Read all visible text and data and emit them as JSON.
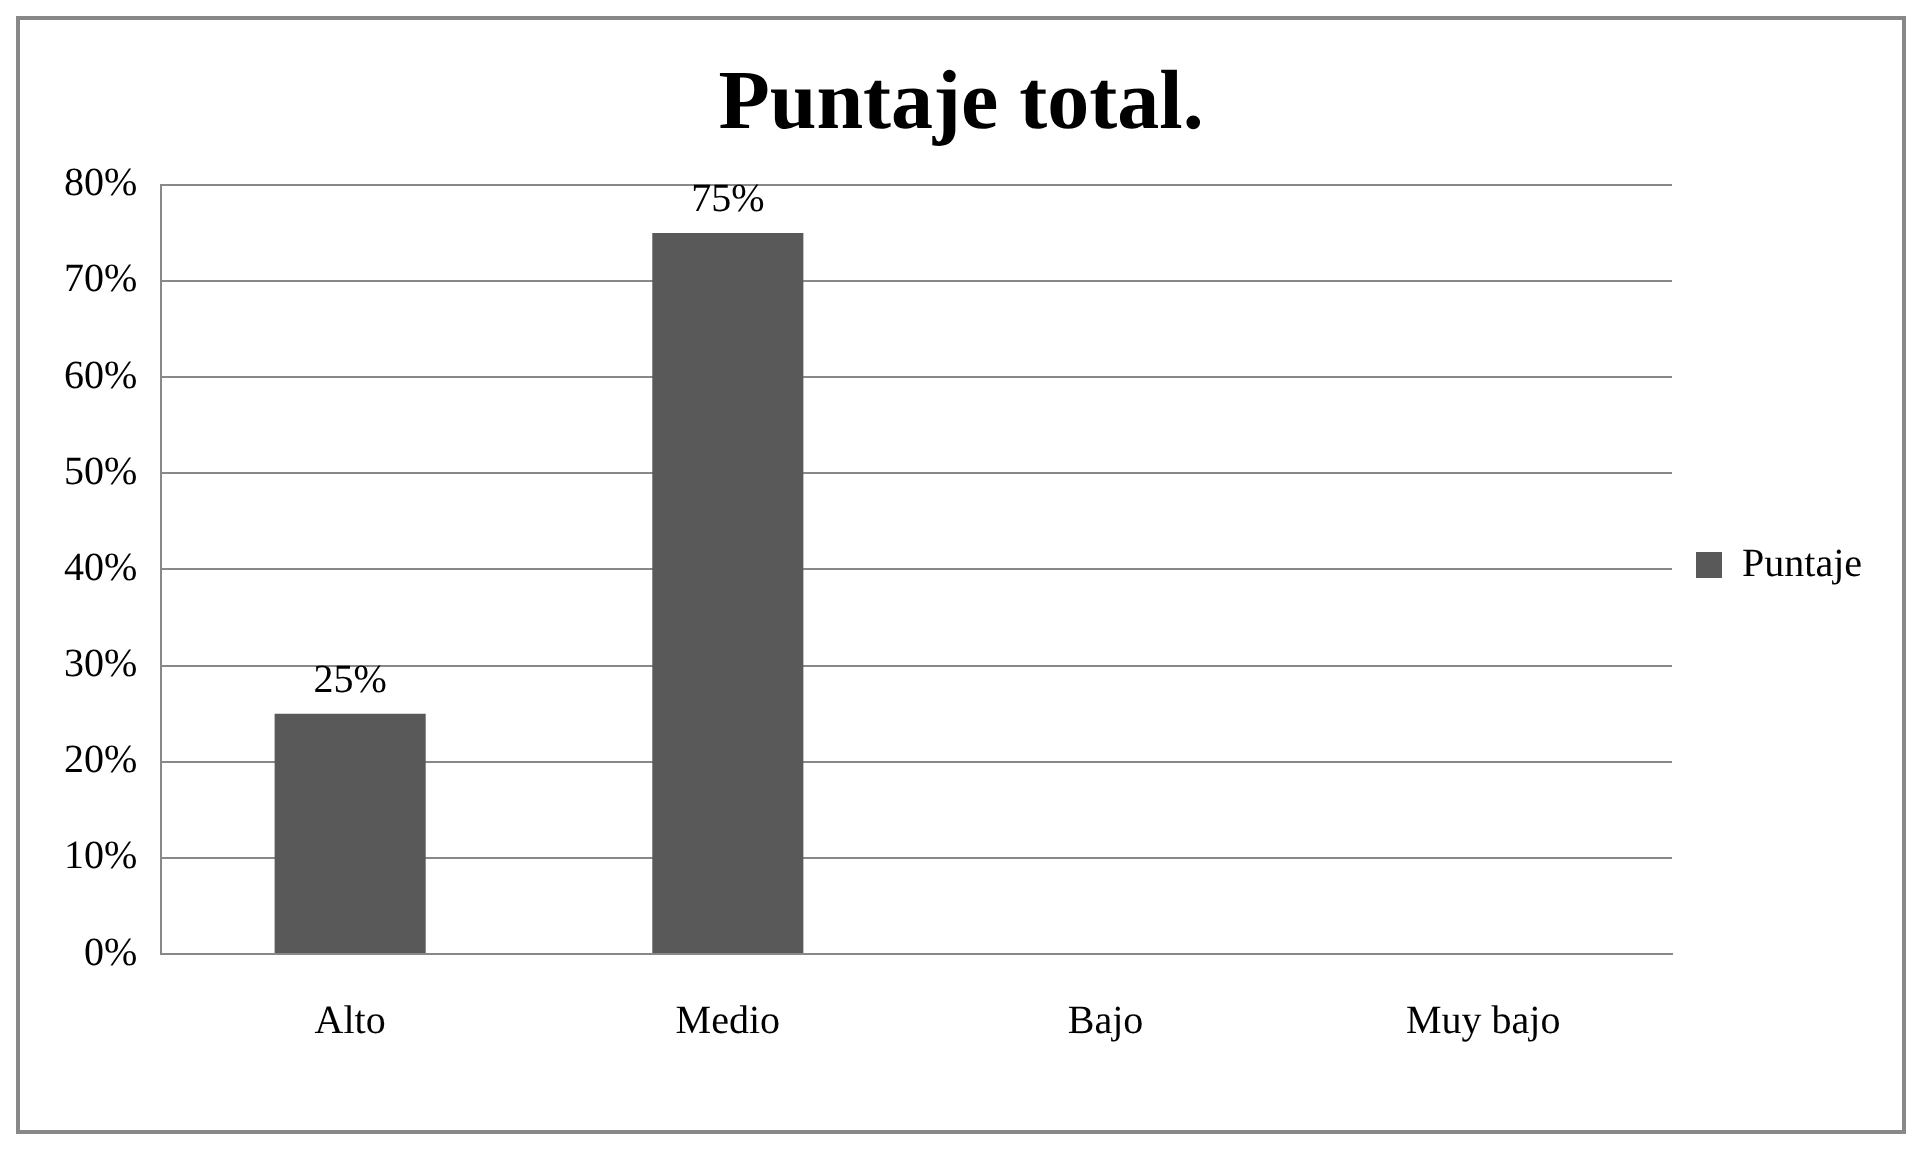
{
  "chart_data": {
    "type": "bar",
    "title": "Puntaje total.",
    "categories": [
      "Alto",
      "Medio",
      "Bajo",
      "Muy bajo"
    ],
    "series": [
      {
        "name": "Puntaje",
        "color": "#595959",
        "values": [
          25,
          75,
          0,
          0
        ],
        "value_labels": [
          "25%",
          "75%",
          null,
          null
        ]
      }
    ],
    "ylim": [
      0,
      80
    ],
    "yticks": [
      {
        "value": 0,
        "label": "0%"
      },
      {
        "value": 10,
        "label": "10%"
      },
      {
        "value": 20,
        "label": "20%"
      },
      {
        "value": 30,
        "label": "30%"
      },
      {
        "value": 40,
        "label": "40%"
      },
      {
        "value": 50,
        "label": "50%"
      },
      {
        "value": 60,
        "label": "60%"
      },
      {
        "value": 70,
        "label": "70%"
      },
      {
        "value": 80,
        "label": "80%"
      }
    ],
    "grid": "y",
    "legend": "right"
  }
}
